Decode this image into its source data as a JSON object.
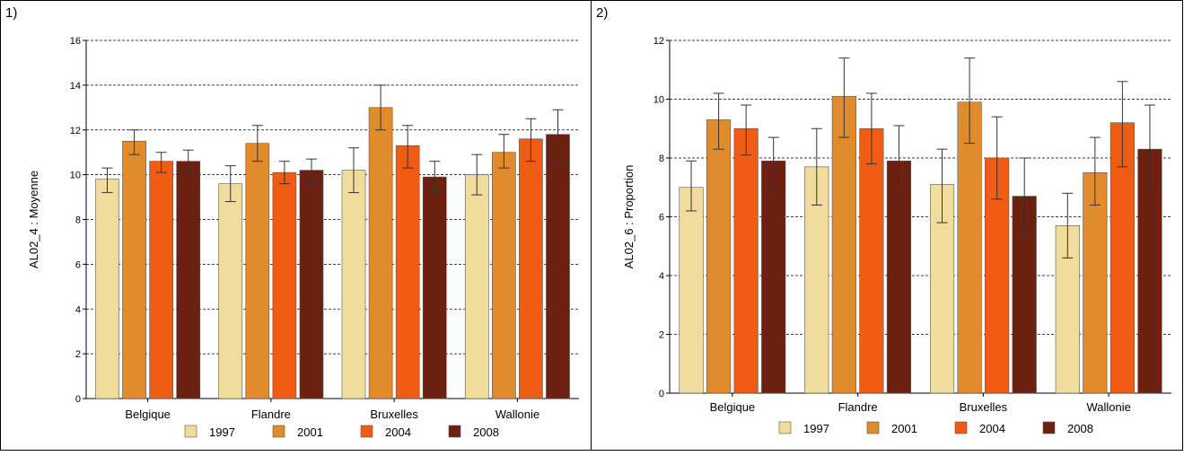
{
  "panels": [
    {
      "label": "1)"
    },
    {
      "label": "2)"
    }
  ],
  "colors": {
    "1997": "#f0dc9c",
    "2001": "#e08c2c",
    "2004": "#f05c14",
    "2008": "#6c2010",
    "grid": "#000000",
    "error_bar": "#333333"
  },
  "chart_data": [
    {
      "type": "bar",
      "ylabel": "AL02_4 : Moyenne",
      "ylim": [
        0,
        16
      ],
      "yticks": [
        0,
        2,
        4,
        6,
        8,
        10,
        12,
        14,
        16
      ],
      "grid": true,
      "legend_position": "bottom",
      "categories": [
        "Belgique",
        "Flandre",
        "Bruxelles",
        "Wallonie"
      ],
      "series": [
        {
          "name": "1997",
          "values": [
            9.8,
            9.6,
            10.2,
            10.0
          ],
          "lower": [
            9.2,
            8.8,
            9.2,
            9.1
          ],
          "upper": [
            10.3,
            10.4,
            11.2,
            10.9
          ]
        },
        {
          "name": "2001",
          "values": [
            11.5,
            11.4,
            13.0,
            11.0
          ],
          "lower": [
            10.9,
            10.6,
            12.0,
            10.3
          ],
          "upper": [
            12.0,
            12.2,
            14.0,
            11.8
          ]
        },
        {
          "name": "2004",
          "values": [
            10.6,
            10.1,
            11.3,
            11.6
          ],
          "lower": [
            10.1,
            9.6,
            10.3,
            10.6
          ],
          "upper": [
            11.0,
            10.6,
            12.2,
            12.5
          ]
        },
        {
          "name": "2008",
          "values": [
            10.6,
            10.2,
            9.9,
            11.8
          ],
          "lower": [
            10.1,
            9.6,
            9.2,
            10.7
          ],
          "upper": [
            11.1,
            10.7,
            10.6,
            12.9
          ]
        }
      ]
    },
    {
      "type": "bar",
      "ylabel": "AL02_6 : Proportion",
      "ylim": [
        0,
        12
      ],
      "yticks": [
        0,
        2,
        4,
        6,
        8,
        10,
        12
      ],
      "grid": true,
      "legend_position": "bottom",
      "categories": [
        "Belgique",
        "Flandre",
        "Bruxelles",
        "Wallonie"
      ],
      "series": [
        {
          "name": "1997",
          "values": [
            7.0,
            7.7,
            7.1,
            5.7
          ],
          "lower": [
            6.2,
            6.4,
            5.8,
            4.6
          ],
          "upper": [
            7.9,
            9.0,
            8.3,
            6.8
          ]
        },
        {
          "name": "2001",
          "values": [
            9.3,
            10.1,
            9.9,
            7.5
          ],
          "lower": [
            8.3,
            8.7,
            8.5,
            6.4
          ],
          "upper": [
            10.2,
            11.4,
            11.4,
            8.7
          ]
        },
        {
          "name": "2004",
          "values": [
            9.0,
            9.0,
            8.0,
            9.2
          ],
          "lower": [
            8.1,
            7.8,
            6.6,
            7.7
          ],
          "upper": [
            9.8,
            10.2,
            9.4,
            10.6
          ]
        },
        {
          "name": "2008",
          "values": [
            7.9,
            7.9,
            6.7,
            8.3
          ],
          "lower": [
            6.9,
            6.8,
            5.4,
            6.8
          ],
          "upper": [
            8.7,
            9.1,
            8.0,
            9.8
          ]
        }
      ]
    }
  ]
}
